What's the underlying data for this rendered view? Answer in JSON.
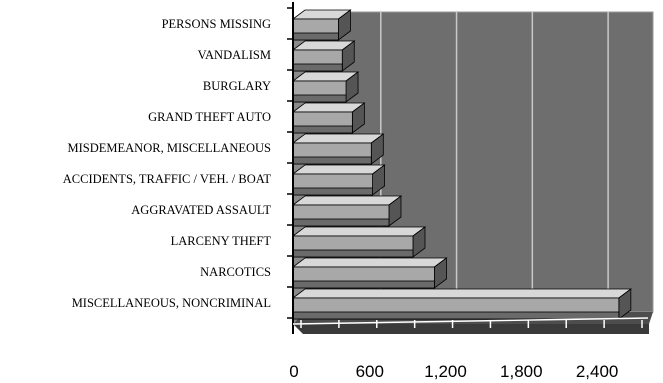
{
  "chart_data": {
    "type": "bar",
    "orientation": "horizontal",
    "style": "3d",
    "categories": [
      "PERSONS MISSING",
      "VANDALISM",
      "BURGLARY",
      "GRAND THEFT AUTO",
      "MISDEMEANOR, MISCELLANEOUS",
      "ACCIDENTS, TRAFFIC / VEH. / BOAT",
      "AGGRAVATED ASSAULT",
      "LARCENY THEFT",
      "NARCOTICS",
      "MISCELLANEOUS, NONCRIMINAL"
    ],
    "values": [
      360,
      390,
      420,
      470,
      620,
      630,
      760,
      950,
      1120,
      2580
    ],
    "title": "",
    "xlabel": "",
    "ylabel": "",
    "xlim": [
      0,
      2700
    ],
    "xticks": [
      0,
      600,
      1200,
      1800,
      2400
    ],
    "xtick_labels": [
      "0",
      "600",
      "1,200",
      "1,800",
      "2,400"
    ],
    "grid": true,
    "legend": "none",
    "colors": {
      "wall": "#6e6e6e",
      "floor": "#4d4d4d",
      "gridline": "#c8c8c8",
      "bar_front": "#a8a8a8",
      "bar_top": "#d8d8d8",
      "bar_side": "#555555"
    }
  }
}
